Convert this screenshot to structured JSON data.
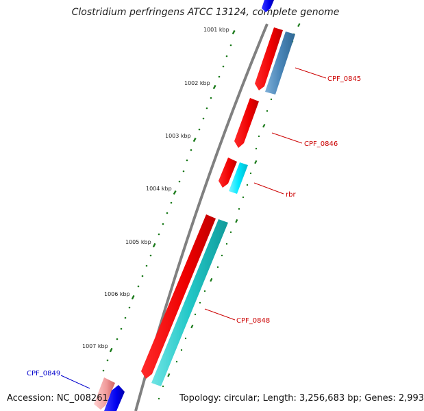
{
  "title": "Clostridium perfringens ATCC 13124, complete genome",
  "footer": {
    "accession": "Accession: NC_008261",
    "summary": "Topology: circular; Length: 3,256,683 bp; Genes: 2,993"
  },
  "ticks": [
    "1001 kbp",
    "1002 kbp",
    "1003 kbp",
    "1004 kbp",
    "1005 kbp",
    "1006 kbp",
    "1007 kbp"
  ],
  "gene_labels": [
    {
      "name": "CPF_0845",
      "color": "#cc0000"
    },
    {
      "name": "CPF_0846",
      "color": "#cc0000"
    },
    {
      "name": "rbr",
      "color": "#cc0000"
    },
    {
      "name": "CPF_0848",
      "color": "#cc0000"
    },
    {
      "name": "CPF_0849",
      "color": "#0000cc"
    }
  ],
  "colors": {
    "gene_forward": "#ff0000",
    "gene_reverse": "#0000ff",
    "cds_teal": "#20c5c5",
    "cds_cyan": "#00e5ff",
    "cds_steel": "#4a86b8",
    "backbone": "#808080",
    "ticks": "#1a7a1a"
  }
}
